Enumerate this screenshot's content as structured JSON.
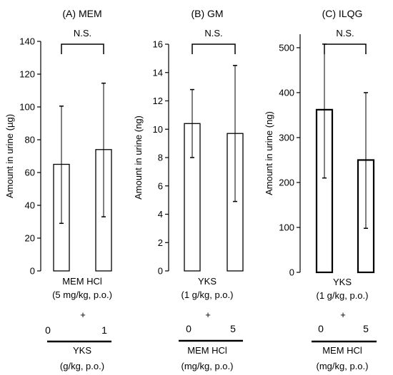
{
  "figure": {
    "panels": [
      {
        "panel_title": "(A) MEM",
        "ylabel": "Amount in urine (µg)",
        "significance": "N.S.",
        "condition_lines": [
          "MEM HCl",
          "(5 mg/kg, p.o.)"
        ],
        "plus": "+",
        "dose_labels": [
          "0",
          "1"
        ],
        "dose_title_lines": [
          "YKS",
          "(g/kg, p.o.)"
        ]
      },
      {
        "panel_title": "(B) GM",
        "ylabel": "Amount in urine (ng)",
        "significance": "N.S.",
        "condition_lines": [
          "YKS",
          "(1 g/kg, p.o.)"
        ],
        "plus": "+",
        "dose_labels": [
          "0",
          "5"
        ],
        "dose_title_lines": [
          "MEM HCl",
          "(mg/kg, p.o.)"
        ]
      },
      {
        "panel_title": "(C) ILQG",
        "ylabel": "Amount in urine (ng)",
        "significance": "N.S.",
        "condition_lines": [
          "YKS",
          "(1 g/kg, p.o.)"
        ],
        "plus": "+",
        "dose_labels": [
          "0",
          "5"
        ],
        "dose_title_lines": [
          "MEM HCl",
          "(mg/kg, p.o.)"
        ]
      }
    ]
  },
  "chart_data": [
    {
      "type": "bar",
      "title": "(A) MEM",
      "xlabel": "YKS (g/kg, p.o.)",
      "ylabel": "Amount in urine (µg)",
      "categories": [
        "0",
        "1"
      ],
      "values": [
        65,
        74
      ],
      "error_low": [
        29,
        33
      ],
      "error_high": [
        100.5,
        114.5
      ],
      "ylim": [
        0,
        140
      ],
      "yticks": [
        0,
        20,
        40,
        60,
        80,
        100,
        120,
        140
      ],
      "grid": false,
      "bar_color": "#ffffff",
      "edge_color": "#000000"
    },
    {
      "type": "bar",
      "title": "(B) GM",
      "xlabel": "MEM HCl (mg/kg, p.o.)",
      "ylabel": "Amount in urine (ng)",
      "categories": [
        "0",
        "5"
      ],
      "values": [
        10.4,
        9.7
      ],
      "error_low": [
        8.0,
        4.9
      ],
      "error_high": [
        12.8,
        14.5
      ],
      "ylim": [
        0,
        16
      ],
      "yticks": [
        0,
        2,
        4,
        6,
        8,
        10,
        12,
        14,
        16
      ],
      "grid": false,
      "bar_color": "#ffffff",
      "edge_color": "#000000"
    },
    {
      "type": "bar",
      "title": "(C) ILQG",
      "xlabel": "MEM HCl (mg/kg, p.o.)",
      "ylabel": "Amount in urine (ng)",
      "categories": [
        "0",
        "5"
      ],
      "values": [
        362,
        250
      ],
      "error_low": [
        210,
        98
      ],
      "error_high": [
        508,
        400
      ],
      "ylim": [
        0,
        530
      ],
      "yticks": [
        0,
        100,
        200,
        300,
        400,
        500
      ],
      "grid": false,
      "bar_color": "#ffffff",
      "edge_color": "#000000"
    }
  ]
}
